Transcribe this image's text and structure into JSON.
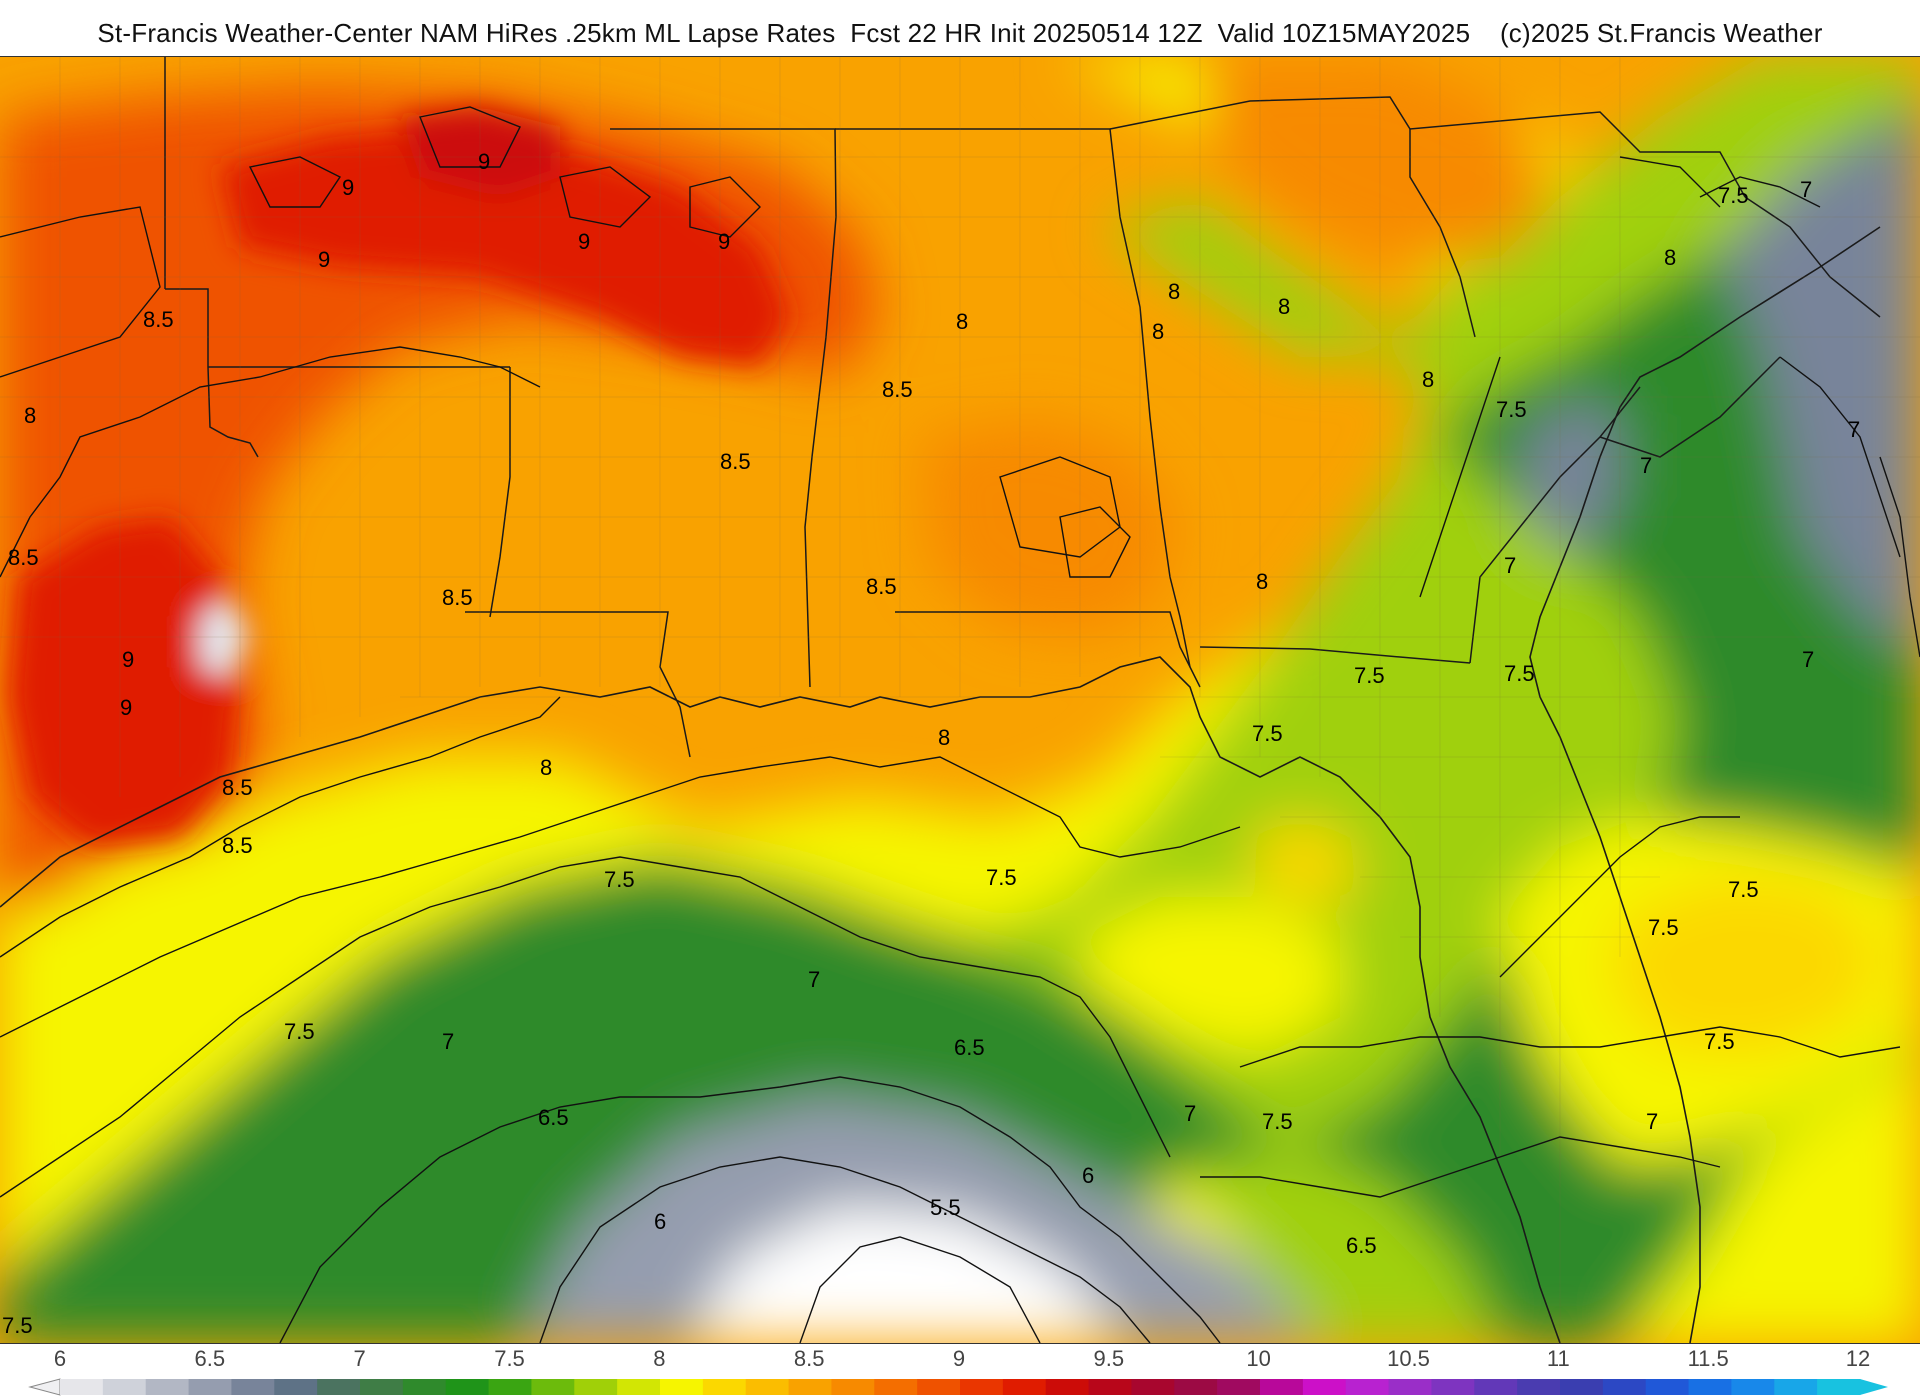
{
  "title": "St-Francis Weather-Center NAM HiRes .25km ML Lapse Rates  Fcst 22 HR Init 20250514 12Z  Valid 10Z15MAY2025    (c)2025 St.Francis Weather",
  "legend": {
    "ticks": [
      "6",
      "6.5",
      "7",
      "7.5",
      "8",
      "8.5",
      "9",
      "9.5",
      "10",
      "10.5",
      "11",
      "11.5",
      "12"
    ],
    "colors": [
      "#e6e6ea",
      "#cfd2da",
      "#b2b7c4",
      "#959daf",
      "#78849a",
      "#5e7286",
      "#4b7360",
      "#3f7d46",
      "#2f8a2c",
      "#1f9419",
      "#3aa512",
      "#6cbb0c",
      "#a0d008",
      "#d2e604",
      "#f6f500",
      "#fbd800",
      "#fbbd00",
      "#f9a200",
      "#f78a00",
      "#f46e00",
      "#ef5200",
      "#ea3600",
      "#e01c00",
      "#cc0c08",
      "#b8061a",
      "#a8062e",
      "#9c0a44",
      "#a00a60",
      "#b8089a",
      "#cc10c8",
      "#b822d0",
      "#9a2ec8",
      "#7e34c0",
      "#6238b8",
      "#4a3cb0",
      "#3a3eb0",
      "#2c48c4",
      "#2058d8",
      "#1870e4",
      "#1888ea",
      "#18a6e8",
      "#18c2e0"
    ]
  },
  "contour_labels": [
    {
      "text": "9"
    },
    {
      "text": "9"
    },
    {
      "text": "9"
    },
    {
      "text": "9"
    },
    {
      "text": "9"
    },
    {
      "text": "9"
    },
    {
      "text": "8.5"
    },
    {
      "text": "8"
    },
    {
      "text": "8.5"
    },
    {
      "text": "8"
    },
    {
      "text": "8"
    },
    {
      "text": "8"
    },
    {
      "text": "8.5"
    },
    {
      "text": "8.5"
    },
    {
      "text": "8.5"
    },
    {
      "text": "8"
    },
    {
      "text": "8"
    },
    {
      "text": "8"
    },
    {
      "text": "7.5"
    },
    {
      "text": "7.5"
    },
    {
      "text": "7"
    },
    {
      "text": "8.5"
    },
    {
      "text": "8.5"
    },
    {
      "text": "8"
    },
    {
      "text": "7.5"
    },
    {
      "text": "7.5"
    },
    {
      "text": "7"
    },
    {
      "text": "8"
    },
    {
      "text": "7.5"
    },
    {
      "text": "7.5"
    },
    {
      "text": "7.5"
    },
    {
      "text": "7.5"
    },
    {
      "text": "7.5"
    },
    {
      "text": "8.5"
    },
    {
      "text": "7"
    },
    {
      "text": "8"
    },
    {
      "text": "7.5"
    },
    {
      "text": "7"
    },
    {
      "text": "7"
    },
    {
      "text": "6.5"
    },
    {
      "text": "6.5"
    },
    {
      "text": "7.5"
    },
    {
      "text": "7"
    },
    {
      "text": "6"
    },
    {
      "text": "5.5"
    },
    {
      "text": "6"
    },
    {
      "text": "6.5"
    },
    {
      "text": "7"
    },
    {
      "text": "7.5"
    },
    {
      "text": "9"
    },
    {
      "text": "7"
    },
    {
      "text": "7"
    }
  ]
}
